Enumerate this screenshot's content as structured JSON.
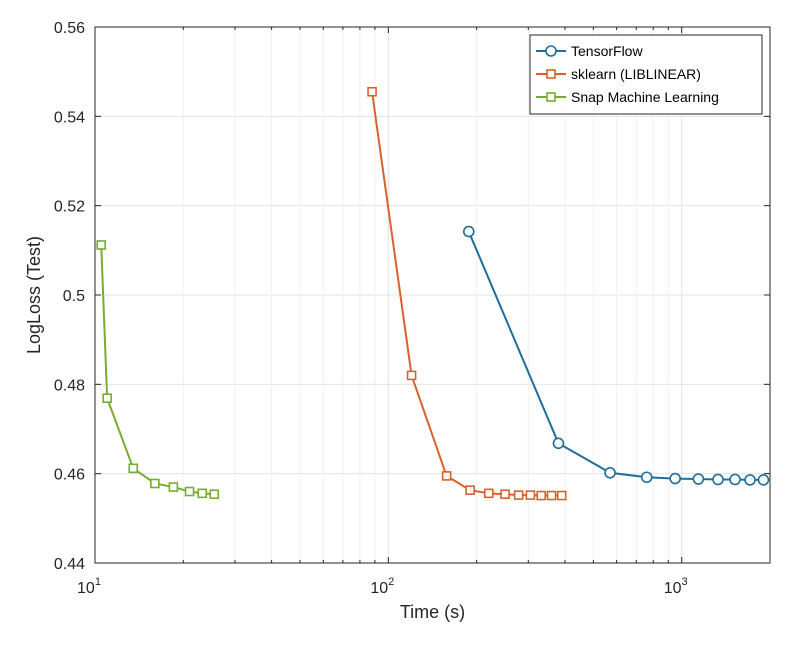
{
  "chart_data": {
    "type": "line",
    "xlabel": "Time (s)",
    "ylabel": "LogLoss (Test)",
    "x_scale": "log",
    "xlim": [
      10,
      2000
    ],
    "ylim": [
      0.44,
      0.56
    ],
    "grid": true,
    "legend_position": "top-right",
    "x_ticks": [
      10,
      100,
      1000
    ],
    "x_tick_labels": [
      {
        "base": "10",
        "exp": "1"
      },
      {
        "base": "10",
        "exp": "2"
      },
      {
        "base": "10",
        "exp": "3"
      }
    ],
    "y_ticks": [
      0.44,
      0.46,
      0.48,
      0.5,
      0.52,
      0.54,
      0.56
    ],
    "y_tick_labels": [
      "0.44",
      "0.46",
      "0.48",
      "0.5",
      "0.52",
      "0.54",
      "0.56"
    ],
    "series": [
      {
        "name": "TensorFlow",
        "color": "#1f6e9c",
        "marker": "circle",
        "x": [
          188,
          380,
          570,
          760,
          950,
          1140,
          1330,
          1520,
          1710,
          1900
        ],
        "y": [
          0.5142,
          0.4668,
          0.4602,
          0.4592,
          0.4589,
          0.4588,
          0.4587,
          0.4587,
          0.4586,
          0.4586
        ]
      },
      {
        "name": "sklearn (LIBLINEAR)",
        "color": "#d9622b",
        "marker": "square",
        "x": [
          88,
          120,
          158,
          190,
          220,
          250,
          278,
          305,
          332,
          360,
          390
        ],
        "y": [
          0.5455,
          0.482,
          0.4595,
          0.4563,
          0.4556,
          0.4554,
          0.4552,
          0.4552,
          0.4551,
          0.4551,
          0.4551
        ]
      },
      {
        "name": "Snap Machine Learning",
        "color": "#77ac30",
        "marker": "square",
        "x": [
          10.5,
          11,
          13.5,
          16,
          18.5,
          21,
          23.2,
          25.5
        ],
        "y": [
          0.5112,
          0.4769,
          0.4612,
          0.4578,
          0.457,
          0.456,
          0.4556,
          0.4554
        ]
      }
    ]
  }
}
